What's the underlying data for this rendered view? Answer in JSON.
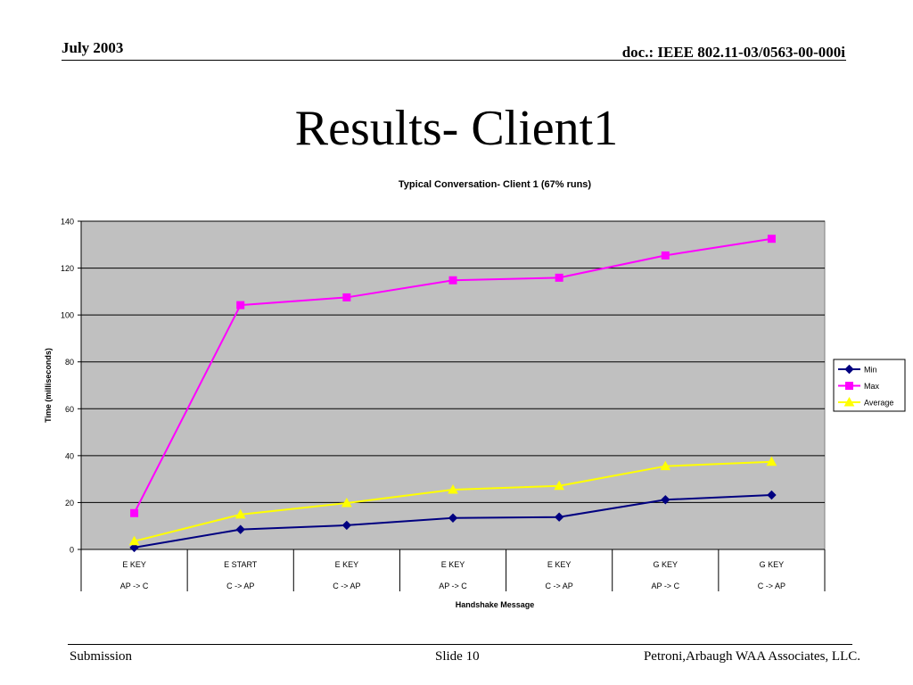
{
  "header": {
    "date": "July 2003",
    "doc_id": "doc.: IEEE 802.11-03/0563-00-000i"
  },
  "slide": {
    "title": "Results- Client1"
  },
  "footer": {
    "left": "Submission",
    "center": "Slide 10",
    "right": "Petroni,Arbaugh WAA Associates, LLC."
  },
  "chart_data": {
    "type": "line",
    "title": "Typical Conversation- Client 1 (67% runs)",
    "xlabel": "Handshake Message",
    "ylabel": "Time (milliseconds)",
    "ylim": [
      0,
      140
    ],
    "yticks": [
      0,
      20,
      40,
      60,
      80,
      100,
      120,
      140
    ],
    "grid": true,
    "legend_position": "right",
    "background_color": "#c0c0c0",
    "categories": [
      {
        "top": "E KEY",
        "bottom": "AP -> C"
      },
      {
        "top": "E START",
        "bottom": "C -> AP"
      },
      {
        "top": "E KEY",
        "bottom": "C -> AP"
      },
      {
        "top": "E KEY",
        "bottom": "AP -> C"
      },
      {
        "top": "E KEY",
        "bottom": "C -> AP"
      },
      {
        "top": "G KEY",
        "bottom": "AP -> C"
      },
      {
        "top": "G KEY",
        "bottom": "C -> AP"
      }
    ],
    "series": [
      {
        "name": "Min",
        "color": "#000080",
        "marker": "diamond",
        "values": [
          0.8,
          8.5,
          10.3,
          13.4,
          13.8,
          21.2,
          23.2
        ]
      },
      {
        "name": "Max",
        "color": "#ff00ff",
        "marker": "square",
        "values": [
          15.5,
          104.2,
          107.5,
          114.8,
          115.9,
          125.4,
          132.5
        ]
      },
      {
        "name": "Average",
        "color": "#ffff00",
        "marker": "triangle",
        "values": [
          3.5,
          14.9,
          19.8,
          25.5,
          27.1,
          35.5,
          37.4
        ]
      }
    ]
  }
}
